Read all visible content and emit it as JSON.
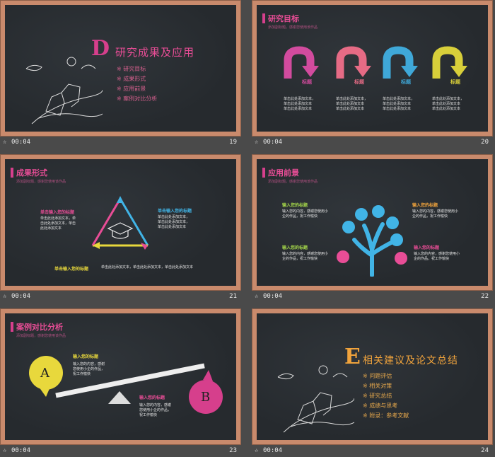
{
  "slides": {
    "s19": {
      "big_letter": "D",
      "title": "研究成果及应用",
      "items": [
        "研究目标",
        "成果形式",
        "应用前景",
        "案例对比分析"
      ],
      "bullet": "※",
      "time": "00:04",
      "number": "19"
    },
    "s20": {
      "title": "研究目标",
      "subtitle": "添加副标题，感谢您使用该作品",
      "arrow_labels": [
        "标题",
        "标题",
        "标题",
        "标题"
      ],
      "arrow_colors": [
        "#d24b9e",
        "#e66b85",
        "#3fa8d8",
        "#d8cf3a"
      ],
      "text_lines": [
        "单击此处添加文本，",
        "单击此处添加文本"
      ],
      "time": "00:04",
      "number": "20"
    },
    "s21": {
      "title": "成果形式",
      "subtitle": "添加副标题，感谢您使用该作品",
      "left_heading": "单击输入您的标题",
      "left_text": [
        "单击此处添加文本，单",
        "击此处添加文本，单击",
        "此处添加文本"
      ],
      "right_heading": "单击输入您的标题",
      "right_text": [
        "单击此处添加文本，",
        "单击此处添加文本，",
        "单击此处添加文本"
      ],
      "bottom_heading": "单击输入您的标题",
      "bottom_text": "单击此处添加文本，单击此处添加文本，单击此处添加文本",
      "time": "00:04",
      "number": "21"
    },
    "s22": {
      "title": "应用前景",
      "subtitle": "添加副标题，感谢您使用该作品",
      "headings": [
        "输入您的标题",
        "输入您的标题",
        "输入您的标题",
        "输入您的标题"
      ],
      "text": [
        "输入您的内容，感谢您使用小",
        "企的作品，祝工作愉快"
      ],
      "time": "00:04",
      "number": "22"
    },
    "s23": {
      "title": "案例对比分析",
      "subtitle": "添加副标题，感谢您使用该作品",
      "left_letter": "A",
      "right_letter": "B",
      "heading_a": "输入您的标题",
      "heading_b": "输入您的标题",
      "text_a": [
        "输入您的内容，感谢",
        "您使用小企的作品，",
        "祝工作愉快"
      ],
      "text_b": [
        "输入您的内容，感谢",
        "您使用小企的作品，",
        "祝工作愉快"
      ],
      "time": "00:04",
      "number": "23"
    },
    "s24": {
      "big_letter": "E",
      "title": "相关建议及论文总结",
      "items": [
        "问题评估",
        "相关对策",
        "研究总结",
        "成绩与思考",
        "附录：参考文献"
      ],
      "bullet": "※",
      "time": "00:04",
      "number": "24"
    }
  },
  "colors": {
    "pink": "#e84d96",
    "orange": "#f0a33c",
    "cyan": "#41b4e6",
    "yellow": "#e8d83c",
    "green": "#a4d64a"
  }
}
